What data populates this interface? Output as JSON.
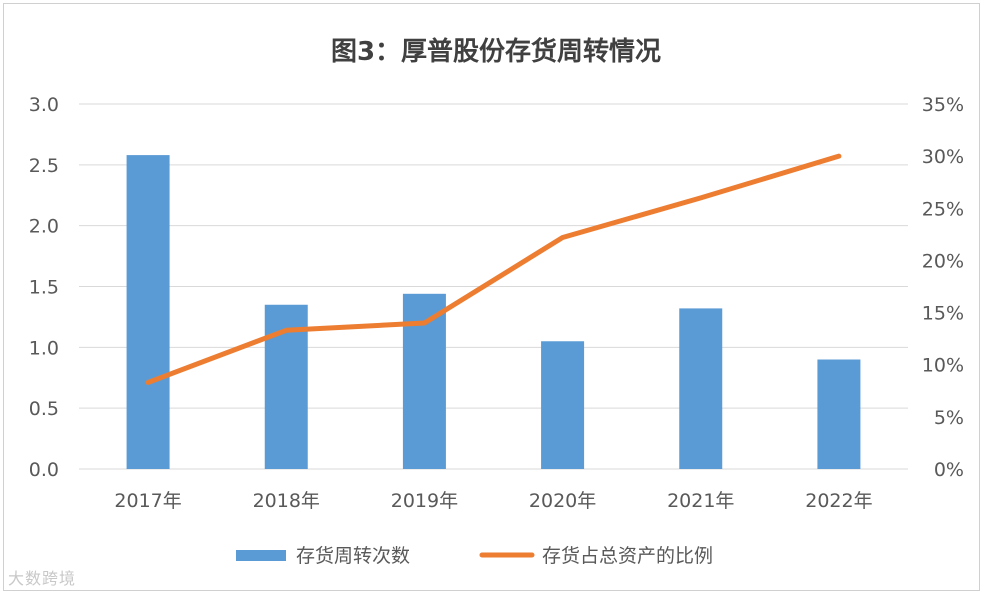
{
  "chart_data": {
    "type": "bar+line",
    "title": "图3：厚普股份存货周转情况",
    "categories": [
      "2017年",
      "2018年",
      "2019年",
      "2020年",
      "2021年",
      "2022年"
    ],
    "series": [
      {
        "name": "存货周转次数",
        "type": "bar",
        "axis": "left",
        "color": "#5b9bd5",
        "values": [
          2.58,
          1.35,
          1.44,
          1.05,
          1.32,
          0.9
        ]
      },
      {
        "name": "存货占总资产的比例",
        "type": "line",
        "axis": "right",
        "color": "#ed7d31",
        "values": [
          0.083,
          0.133,
          0.14,
          0.222,
          0.26,
          0.3
        ]
      }
    ],
    "y_left": {
      "min": 0,
      "max": 3.0,
      "step": 0.5,
      "ticks": [
        "0.0",
        "0.5",
        "1.0",
        "1.5",
        "2.0",
        "2.5",
        "3.0"
      ]
    },
    "y_right": {
      "min": 0,
      "max": 0.35,
      "step": 0.05,
      "ticks": [
        "0%",
        "5%",
        "10%",
        "15%",
        "20%",
        "25%",
        "30%",
        "35%"
      ]
    },
    "grid": true,
    "legend_position": "bottom"
  },
  "watermark": "大数跨境"
}
